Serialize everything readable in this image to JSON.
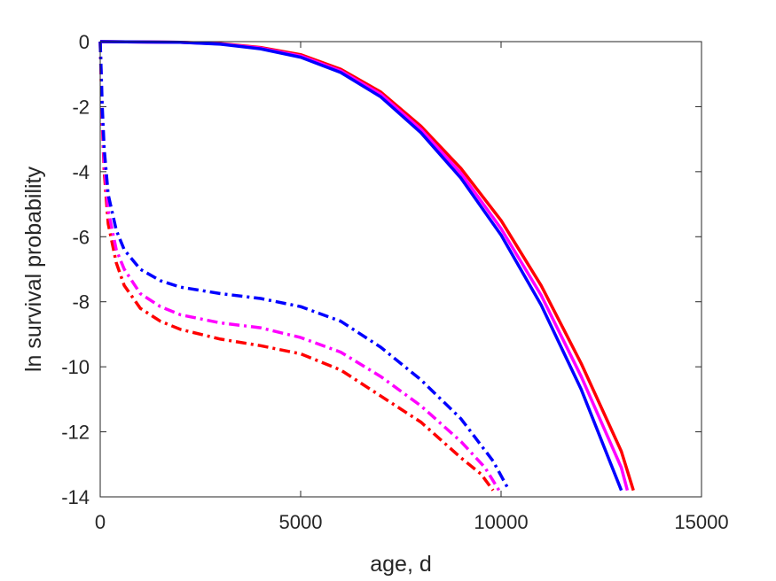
{
  "chart_data": {
    "type": "line",
    "title": "",
    "xlabel": "age, d",
    "ylabel": "ln survival probability",
    "xlim": [
      0,
      15000
    ],
    "ylim": [
      -14,
      0
    ],
    "xticks": [
      0,
      5000,
      10000,
      15000
    ],
    "yticks": [
      -14,
      -12,
      -10,
      -8,
      -6,
      -4,
      -2,
      0
    ],
    "grid": false,
    "legend": "none",
    "series": [
      {
        "color": "#ff0000",
        "style": "solid",
        "x": [
          0,
          2000,
          3000,
          4000,
          5000,
          6000,
          7000,
          8000,
          9000,
          10000,
          11000,
          12000,
          13000,
          13300
        ],
        "y": [
          0,
          -0.02,
          -0.06,
          -0.18,
          -0.4,
          -0.85,
          -1.55,
          -2.6,
          -3.9,
          -5.5,
          -7.5,
          -9.9,
          -12.6,
          -13.8
        ]
      },
      {
        "color": "#ff00ff",
        "style": "solid",
        "x": [
          0,
          2000,
          3000,
          4000,
          5000,
          6000,
          7000,
          8000,
          9000,
          10000,
          11000,
          12000,
          13000,
          13150
        ],
        "y": [
          0,
          -0.02,
          -0.07,
          -0.2,
          -0.44,
          -0.9,
          -1.62,
          -2.7,
          -4.05,
          -5.75,
          -7.8,
          -10.3,
          -13.1,
          -13.8
        ]
      },
      {
        "color": "#0000ff",
        "style": "solid",
        "x": [
          0,
          2000,
          3000,
          4000,
          5000,
          6000,
          7000,
          8000,
          9000,
          10000,
          11000,
          12000,
          13000
        ],
        "y": [
          0,
          -0.02,
          -0.08,
          -0.22,
          -0.48,
          -0.95,
          -1.7,
          -2.8,
          -4.2,
          -5.95,
          -8.1,
          -10.7,
          -13.8
        ]
      },
      {
        "color": "#ff0000",
        "style": "dashdot",
        "x": [
          0,
          50,
          100,
          200,
          400,
          600,
          1000,
          1500,
          2000,
          3000,
          4000,
          5000,
          6000,
          7000,
          8000,
          9000,
          9500,
          9800
        ],
        "y": [
          0,
          -2.5,
          -4.0,
          -5.6,
          -6.8,
          -7.5,
          -8.2,
          -8.6,
          -8.85,
          -9.15,
          -9.35,
          -9.6,
          -10.1,
          -10.9,
          -11.7,
          -12.8,
          -13.3,
          -13.8
        ]
      },
      {
        "color": "#ff00ff",
        "style": "dashdot",
        "x": [
          0,
          50,
          100,
          200,
          400,
          600,
          1000,
          1500,
          2000,
          3000,
          4000,
          5000,
          6000,
          7000,
          8000,
          9000,
          9600,
          9950
        ],
        "y": [
          0,
          -2.3,
          -3.7,
          -5.2,
          -6.4,
          -7.0,
          -7.75,
          -8.15,
          -8.4,
          -8.65,
          -8.8,
          -9.1,
          -9.55,
          -10.3,
          -11.2,
          -12.3,
          -13.1,
          -13.8
        ]
      },
      {
        "color": "#0000ff",
        "style": "dashdot",
        "x": [
          0,
          50,
          100,
          200,
          400,
          600,
          1000,
          1500,
          2000,
          3000,
          4000,
          5000,
          6000,
          7000,
          8000,
          9000,
          9800,
          10200
        ],
        "y": [
          0,
          -2.0,
          -3.3,
          -4.7,
          -5.8,
          -6.4,
          -7.0,
          -7.35,
          -7.55,
          -7.75,
          -7.9,
          -8.15,
          -8.6,
          -9.4,
          -10.4,
          -11.6,
          -12.9,
          -13.8
        ]
      }
    ]
  }
}
